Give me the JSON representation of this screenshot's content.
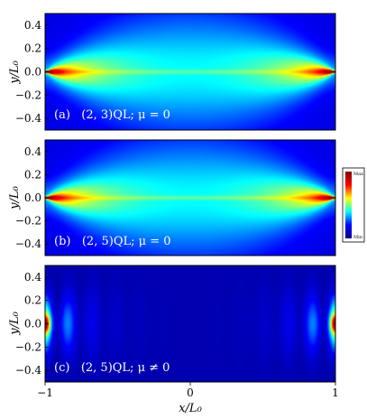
{
  "chart_data": [
    {
      "type": "heatmap",
      "panel_label": "(a)   (2, 3)QL; μ = 0",
      "model": "edge-wedge",
      "ylabel": "y/L₀",
      "yticks": [
        "0.4",
        "0.2",
        "0.0",
        "−0.2",
        "−0.4"
      ],
      "ytick_values": [
        0.4,
        0.2,
        0.0,
        -0.2,
        -0.4
      ],
      "xlim": [
        -1,
        1
      ],
      "ylim": [
        -0.5,
        0.5
      ]
    },
    {
      "type": "heatmap",
      "panel_label": "(b)   (2, 5)QL; μ = 0",
      "model": "edge-wedge",
      "ylabel": "y/L₀",
      "yticks": [
        "0.4",
        "0.2",
        "0.0",
        "−0.2",
        "−0.4"
      ],
      "ytick_values": [
        0.4,
        0.2,
        0.0,
        -0.2,
        -0.4
      ],
      "xlim": [
        -1,
        1
      ],
      "ylim": [
        -0.5,
        0.5
      ]
    },
    {
      "type": "heatmap",
      "panel_label": "(c)   (2, 5)QL; μ ≠ 0",
      "model": "oscillating",
      "ylabel": "y/L₀",
      "yticks": [
        "0.4",
        "0.2",
        "0.0",
        "−0.2",
        "−0.4"
      ],
      "ytick_values": [
        0.4,
        0.2,
        0.0,
        -0.2,
        -0.4
      ],
      "xlabel": "x/L₀",
      "xticks": [
        "−1",
        "0",
        "1"
      ],
      "xtick_values": [
        -1,
        0,
        1
      ],
      "xlim": [
        -1,
        1
      ],
      "ylim": [
        -0.5,
        0.5
      ]
    }
  ],
  "colorbar": {
    "max_label": "Max",
    "min_label": "Min",
    "colors": [
      "#00008f",
      "#0000ff",
      "#00ffff",
      "#ffff00",
      "#ff0000",
      "#800000"
    ]
  }
}
